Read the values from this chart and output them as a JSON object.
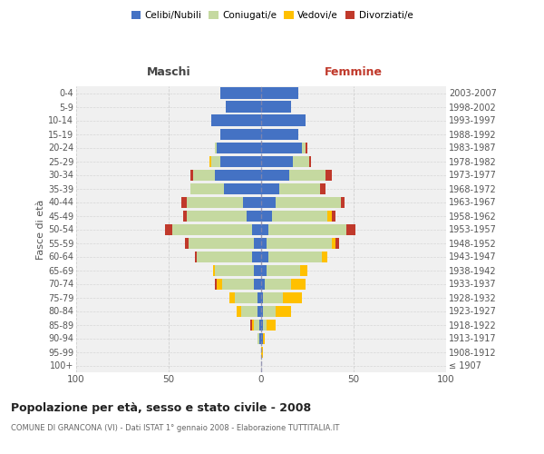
{
  "age_groups": [
    "100+",
    "95-99",
    "90-94",
    "85-89",
    "80-84",
    "75-79",
    "70-74",
    "65-69",
    "60-64",
    "55-59",
    "50-54",
    "45-49",
    "40-44",
    "35-39",
    "30-34",
    "25-29",
    "20-24",
    "15-19",
    "10-14",
    "5-9",
    "0-4"
  ],
  "birth_years": [
    "≤ 1907",
    "1908-1912",
    "1913-1917",
    "1918-1922",
    "1923-1927",
    "1928-1932",
    "1933-1937",
    "1938-1942",
    "1943-1947",
    "1948-1952",
    "1953-1957",
    "1958-1962",
    "1963-1967",
    "1968-1972",
    "1973-1977",
    "1978-1982",
    "1983-1987",
    "1988-1992",
    "1993-1997",
    "1998-2002",
    "2003-2007"
  ],
  "colors": {
    "celibi": "#4472c4",
    "coniugati": "#c5d9a0",
    "vedovi": "#ffc000",
    "divorziati": "#c0392b"
  },
  "males": {
    "celibi": [
      0,
      0,
      1,
      1,
      2,
      2,
      4,
      4,
      5,
      4,
      5,
      8,
      10,
      20,
      25,
      22,
      24,
      22,
      27,
      19,
      22
    ],
    "coniugati": [
      0,
      0,
      1,
      3,
      9,
      12,
      17,
      21,
      30,
      35,
      43,
      32,
      30,
      18,
      12,
      5,
      1,
      0,
      0,
      0,
      0
    ],
    "vedovi": [
      0,
      0,
      0,
      1,
      2,
      3,
      3,
      1,
      0,
      0,
      0,
      0,
      0,
      0,
      0,
      1,
      0,
      0,
      0,
      0,
      0
    ],
    "divorziati": [
      0,
      0,
      0,
      1,
      0,
      0,
      1,
      0,
      1,
      2,
      4,
      2,
      3,
      0,
      1,
      0,
      0,
      0,
      0,
      0,
      0
    ]
  },
  "females": {
    "celibi": [
      0,
      0,
      1,
      1,
      1,
      1,
      2,
      3,
      4,
      3,
      4,
      6,
      8,
      10,
      15,
      17,
      22,
      20,
      24,
      16,
      20
    ],
    "coniugati": [
      0,
      0,
      0,
      2,
      7,
      11,
      14,
      18,
      29,
      35,
      42,
      30,
      35,
      22,
      20,
      9,
      2,
      0,
      0,
      0,
      0
    ],
    "vedovi": [
      0,
      1,
      1,
      5,
      8,
      10,
      8,
      4,
      3,
      2,
      0,
      2,
      0,
      0,
      0,
      0,
      0,
      0,
      0,
      0,
      0
    ],
    "divorziati": [
      0,
      0,
      0,
      0,
      0,
      0,
      0,
      0,
      0,
      2,
      5,
      2,
      2,
      3,
      3,
      1,
      1,
      0,
      0,
      0,
      0
    ]
  },
  "xlim": 100,
  "title": "Popolazione per età, sesso e stato civile - 2008",
  "subtitle": "COMUNE DI GRANCONA (VI) - Dati ISTAT 1° gennaio 2008 - Elaborazione TUTTITALIA.IT",
  "ylabel_left": "Fasce di età",
  "xlabel_left": "Maschi",
  "xlabel_right": "Femmine",
  "background_color": "#f0f0f0",
  "grid_color": "#cccccc",
  "maschi_color": "#444444",
  "femmine_color": "#c0392b"
}
